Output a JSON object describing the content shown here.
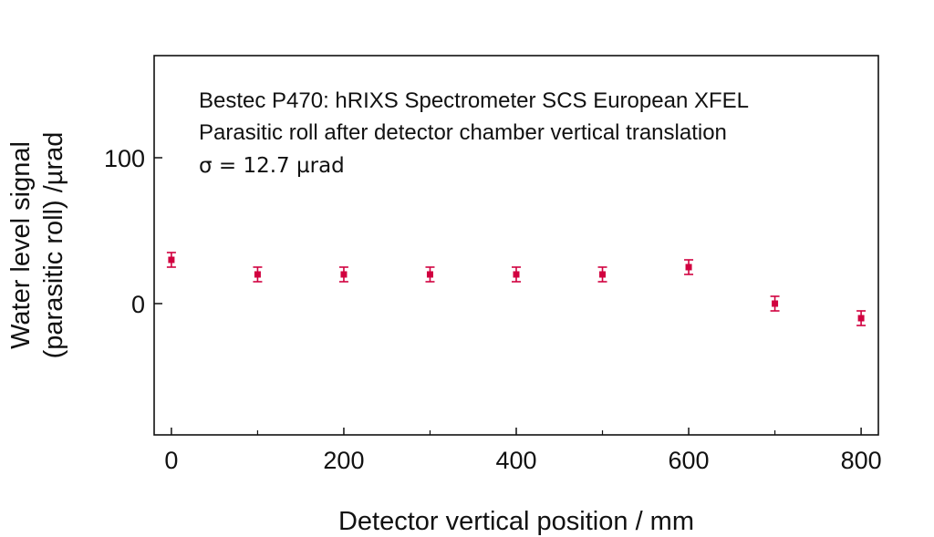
{
  "chart_data": {
    "type": "scatter",
    "title": "",
    "annotations": [
      "Bestec P470: hRIXS Spectrometer SCS European XFEL",
      "Parasitic roll after detector chamber vertical translation",
      "σ = 12.7 µrad"
    ],
    "xlabel": "Detector vertical position / mm",
    "ylabel_lines": [
      "Water level signal",
      "(parasitic roll) /µrad"
    ],
    "xlim": [
      -20,
      820
    ],
    "ylim": [
      -90,
      170
    ],
    "xticks": [
      0,
      200,
      400,
      600,
      800
    ],
    "xticks_minor": [
      100,
      300,
      500,
      700
    ],
    "yticks": [
      0,
      100
    ],
    "grid": false,
    "marker_color": "#d1003f",
    "series": [
      {
        "x": [
          0,
          100,
          200,
          300,
          400,
          500,
          600,
          700,
          800
        ],
        "y": [
          30,
          20,
          20,
          20,
          20,
          20,
          25,
          0,
          -10
        ],
        "error": [
          5,
          5,
          5,
          5,
          5,
          5,
          5,
          5,
          5
        ]
      }
    ]
  }
}
